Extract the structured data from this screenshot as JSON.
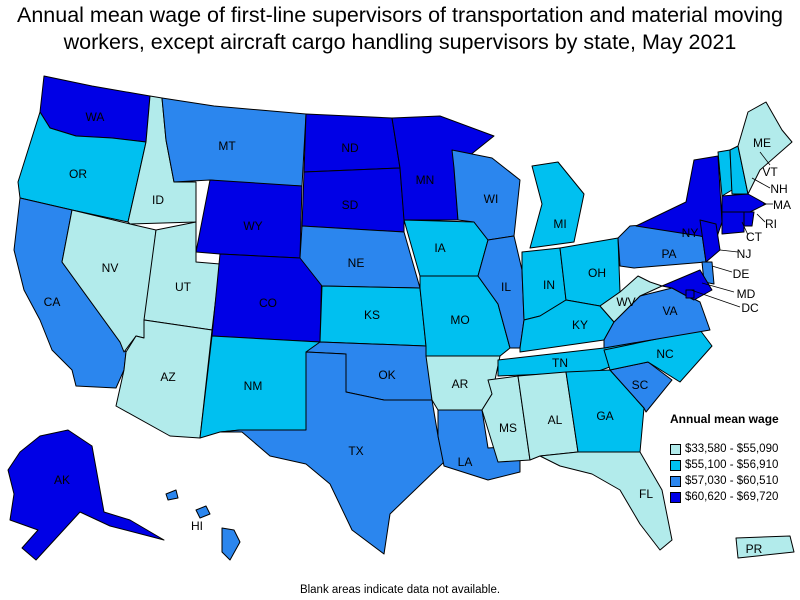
{
  "title": "Annual mean wage of first-line supervisors of transportation and material moving workers, except aircraft cargo handling supervisors by state, May 2021",
  "footnote": "Blank areas indicate data not available.",
  "legend": {
    "title": "Annual mean wage",
    "items": [
      {
        "label": "$33,580 - $55,090",
        "color": "#b2ebeb"
      },
      {
        "label": "$55,100 - $56,910",
        "color": "#00c0f0"
      },
      {
        "label": "$57,030 - $60,510",
        "color": "#2b86ee"
      },
      {
        "label": "$60,620 - $69,720",
        "color": "#0000e6"
      }
    ]
  },
  "states": [
    {
      "abbr": "WA",
      "tier": 3
    },
    {
      "abbr": "OR",
      "tier": 1
    },
    {
      "abbr": "CA",
      "tier": 2
    },
    {
      "abbr": "ID",
      "tier": 0
    },
    {
      "abbr": "NV",
      "tier": 0
    },
    {
      "abbr": "UT",
      "tier": 0
    },
    {
      "abbr": "AZ",
      "tier": 0
    },
    {
      "abbr": "MT",
      "tier": 2
    },
    {
      "abbr": "WY",
      "tier": 3
    },
    {
      "abbr": "CO",
      "tier": 3
    },
    {
      "abbr": "NM",
      "tier": 1
    },
    {
      "abbr": "ND",
      "tier": 3
    },
    {
      "abbr": "SD",
      "tier": 3
    },
    {
      "abbr": "NE",
      "tier": 2
    },
    {
      "abbr": "KS",
      "tier": 1
    },
    {
      "abbr": "OK",
      "tier": 2
    },
    {
      "abbr": "TX",
      "tier": 2
    },
    {
      "abbr": "MN",
      "tier": 3
    },
    {
      "abbr": "IA",
      "tier": 1
    },
    {
      "abbr": "MO",
      "tier": 1
    },
    {
      "abbr": "AR",
      "tier": 0
    },
    {
      "abbr": "LA",
      "tier": 2
    },
    {
      "abbr": "WI",
      "tier": 2
    },
    {
      "abbr": "IL",
      "tier": 2
    },
    {
      "abbr": "MI",
      "tier": 1
    },
    {
      "abbr": "IN",
      "tier": 1
    },
    {
      "abbr": "OH",
      "tier": 1
    },
    {
      "abbr": "KY",
      "tier": 1
    },
    {
      "abbr": "TN",
      "tier": 1
    },
    {
      "abbr": "MS",
      "tier": 0
    },
    {
      "abbr": "AL",
      "tier": 0
    },
    {
      "abbr": "GA",
      "tier": 1
    },
    {
      "abbr": "FL",
      "tier": 0
    },
    {
      "abbr": "SC",
      "tier": 2
    },
    {
      "abbr": "NC",
      "tier": 1
    },
    {
      "abbr": "VA",
      "tier": 2
    },
    {
      "abbr": "WV",
      "tier": 0
    },
    {
      "abbr": "PA",
      "tier": 2
    },
    {
      "abbr": "NY",
      "tier": 3
    },
    {
      "abbr": "VT",
      "tier": 1
    },
    {
      "abbr": "NH",
      "tier": 1
    },
    {
      "abbr": "ME",
      "tier": 0
    },
    {
      "abbr": "MA",
      "tier": 3
    },
    {
      "abbr": "CT",
      "tier": 3
    },
    {
      "abbr": "RI",
      "tier": 3
    },
    {
      "abbr": "NJ",
      "tier": 3
    },
    {
      "abbr": "DE",
      "tier": 2
    },
    {
      "abbr": "MD",
      "tier": 3
    },
    {
      "abbr": "DC",
      "tier": 3
    },
    {
      "abbr": "AK",
      "tier": 3
    },
    {
      "abbr": "HI",
      "tier": 2
    },
    {
      "abbr": "PR",
      "tier": 0
    }
  ]
}
